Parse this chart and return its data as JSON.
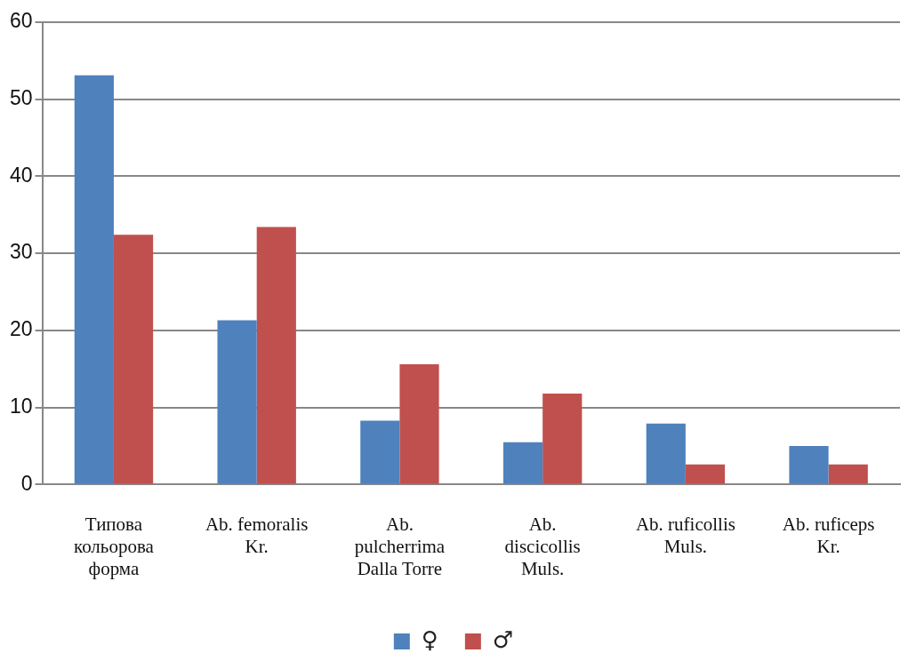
{
  "chart_data": {
    "type": "bar",
    "categories": [
      "Типова кольорова форма",
      "Ab. femoralis Kr.",
      "Ab. pulcherrima Dalla Torre",
      "Ab. discicollis Muls.",
      "Ab. ruficollis Muls.",
      "Ab. ruficeps Kr."
    ],
    "series": [
      {
        "name": "♀",
        "color": "#4f81bd",
        "values": [
          53.1,
          21.3,
          8.3,
          5.5,
          7.9,
          5.0
        ]
      },
      {
        "name": "♂",
        "color": "#c0504d",
        "values": [
          32.4,
          33.4,
          15.6,
          11.8,
          2.6,
          2.6
        ]
      }
    ],
    "ylim": [
      0,
      60
    ],
    "yticks": [
      0,
      10,
      20,
      30,
      40,
      50,
      60
    ],
    "grid": "y",
    "legend": "bottom"
  }
}
